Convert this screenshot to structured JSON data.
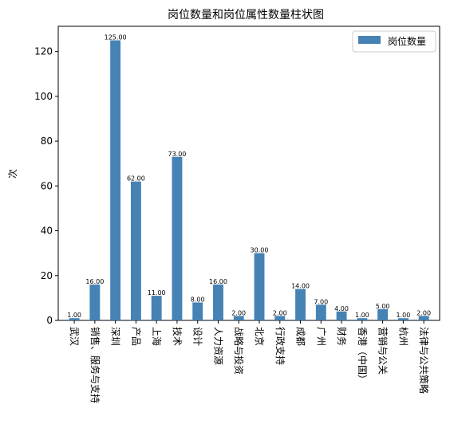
{
  "chart_data": {
    "type": "bar",
    "title": "岗位数量和岗位属性数量柱状图",
    "xlabel": "",
    "ylabel": "次",
    "categories": [
      "武汉",
      "销售、服务与支持",
      "深圳",
      "产品",
      "上海",
      "技术",
      "设计",
      "人力资源",
      "战略与投资",
      "北京",
      "行政支持",
      "成都",
      "广州",
      "财务",
      "香港（中国）",
      "营销与公关",
      "杭州",
      "法律与公共策略"
    ],
    "series": [
      {
        "name": "岗位数量",
        "values": [
          1,
          16,
          125,
          62,
          11,
          73,
          8,
          16,
          2,
          30,
          2,
          14,
          7,
          4,
          1,
          5,
          1,
          2
        ],
        "value_labels": [
          "1.00",
          "16.00",
          "125.00",
          "62.00",
          "11.00",
          "73.00",
          "8.00",
          "16.00",
          "2.00",
          "30.00",
          "2.00",
          "14.00",
          "7.00",
          "4.00",
          "1.00",
          "5.00",
          "1.00",
          "2.00"
        ],
        "color": "#4682b4"
      }
    ],
    "ylim": [
      0,
      131.25
    ],
    "yticks": [
      "0",
      "20",
      "40",
      "60",
      "80",
      "100",
      "120"
    ],
    "legend_position": "top-right",
    "grid": false
  }
}
